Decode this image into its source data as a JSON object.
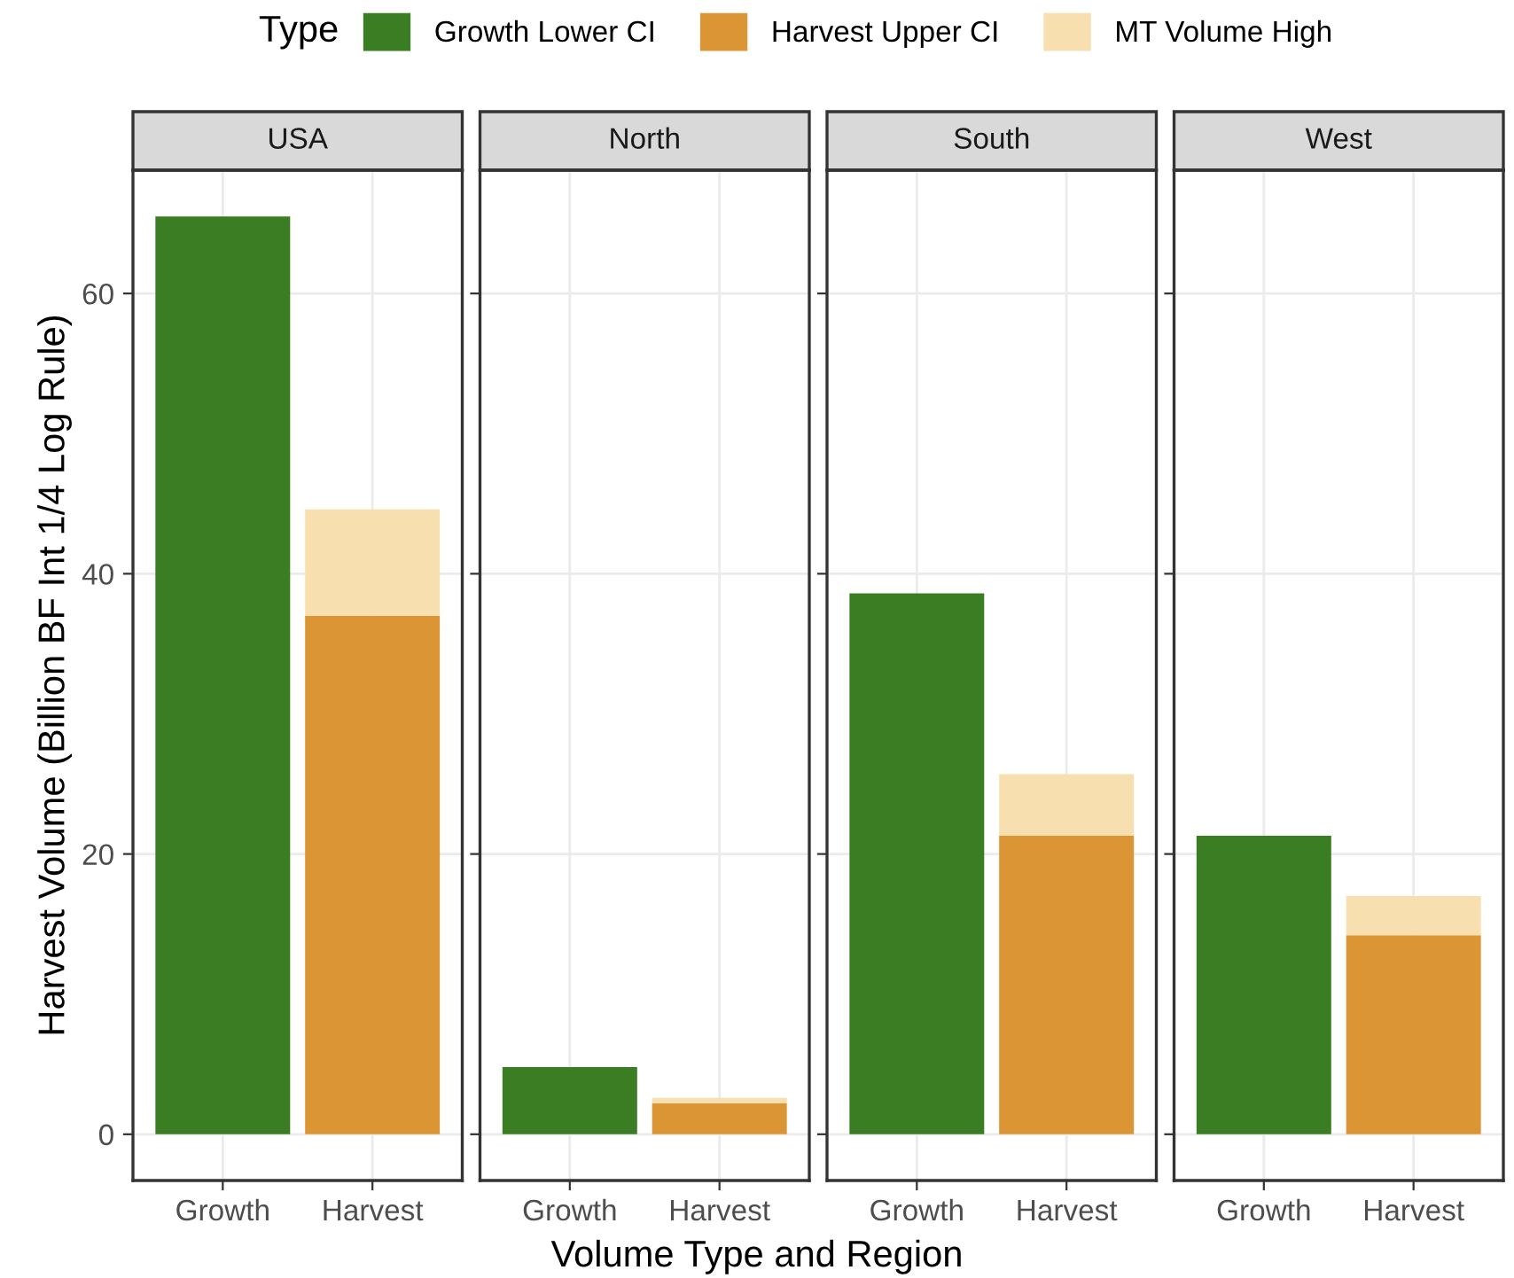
{
  "chart_data": [
    {
      "type": "bar",
      "title": "USA",
      "categories": [
        "Growth",
        "Harvest"
      ],
      "stacked": true,
      "ylabel": "Harvest Volume (Billion BF Int 1/4 Log Rule)",
      "xlabel": "Volume Type and Region",
      "legend_title": "Type",
      "legend": "top",
      "grid": true,
      "ylim": [
        -3.3,
        68.8
      ],
      "yticks": [
        0,
        20,
        40,
        60
      ],
      "series": [
        {
          "name": "Growth Lower CI",
          "color": "#3a7d22",
          "values": [
            65.5,
            null
          ]
        },
        {
          "name": "Harvest Upper CI",
          "color": "#db9535",
          "values": [
            null,
            37.0
          ]
        },
        {
          "name": "MT Volume High",
          "color": "#f8dfb0",
          "values": [
            null,
            7.6
          ]
        }
      ]
    },
    {
      "type": "bar",
      "title": "North",
      "categories": [
        "Growth",
        "Harvest"
      ],
      "stacked": true,
      "grid": true,
      "ylim": [
        -3.3,
        68.8
      ],
      "tick_labels": "x",
      "series": [
        {
          "color": "#3a7d22",
          "values": [
            4.8,
            null
          ]
        },
        {
          "color": "#db9535",
          "values": [
            null,
            2.2
          ]
        },
        {
          "color": "#f8dfb0",
          "values": [
            null,
            0.4
          ]
        }
      ]
    },
    {
      "type": "bar",
      "title": "South",
      "categories": [
        "Growth",
        "Harvest"
      ],
      "stacked": true,
      "grid": true,
      "ylim": [
        -3.3,
        68.8
      ],
      "tick_labels": "x",
      "series": [
        {
          "color": "#3a7d22",
          "values": [
            38.6,
            null
          ]
        },
        {
          "color": "#db9535",
          "values": [
            null,
            21.3
          ]
        },
        {
          "color": "#f8dfb0",
          "values": [
            null,
            4.4
          ]
        }
      ]
    },
    {
      "type": "bar",
      "title": "West",
      "categories": [
        "Growth",
        "Harvest"
      ],
      "stacked": true,
      "grid": true,
      "ylim": [
        -3.3,
        68.8
      ],
      "tick_labels": "x",
      "series": [
        {
          "color": "#3a7d22",
          "values": [
            21.3,
            null
          ]
        },
        {
          "color": "#db9535",
          "values": [
            null,
            14.2
          ]
        },
        {
          "color": "#f8dfb0",
          "values": [
            null,
            2.8
          ]
        }
      ]
    }
  ]
}
